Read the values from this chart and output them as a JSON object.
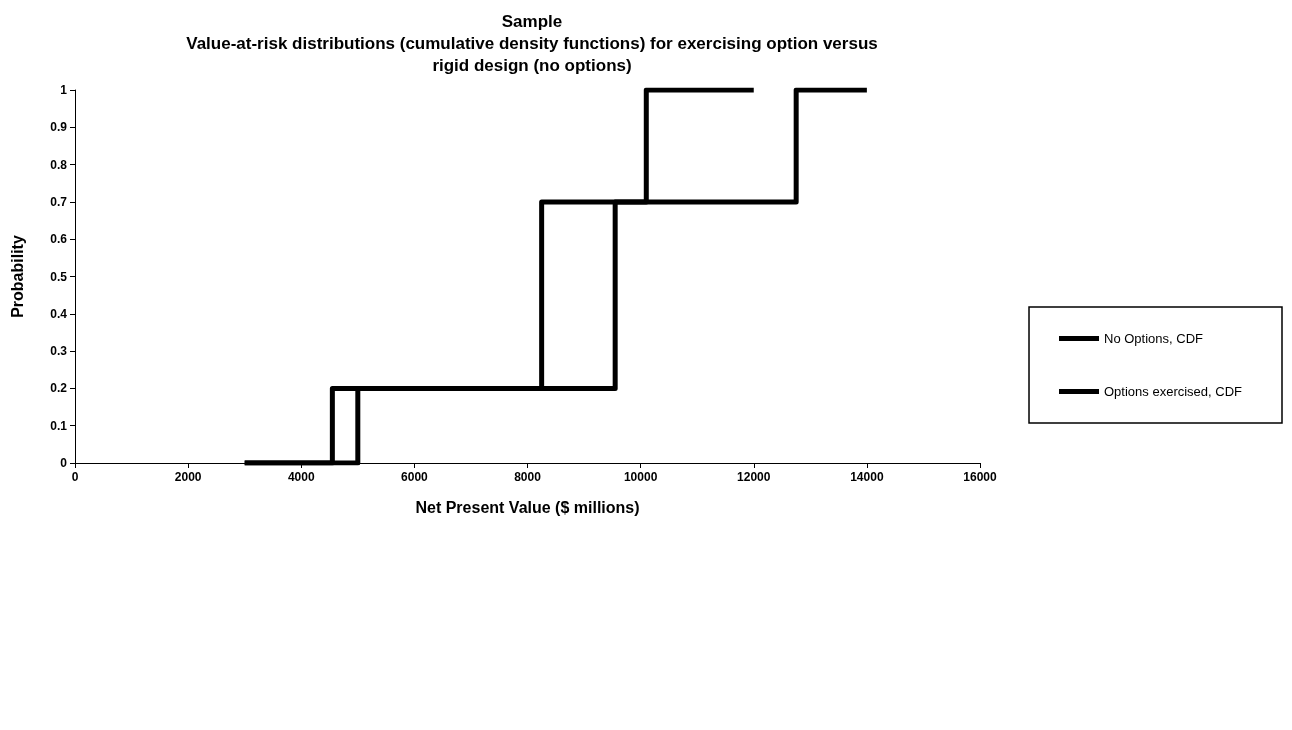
{
  "chart_data": {
    "type": "step",
    "title": "Sample\nValue-at-risk distributions (cumulative density functions) for exercising option versus\nrigid design (no options)",
    "xlabel": "Net Present Value ($ millions)",
    "ylabel": "Probability",
    "series": [
      {
        "name": "No Options, CDF",
        "color": "#000000",
        "x": [
          3000,
          4550,
          8250,
          10100,
          12000
        ],
        "values": [
          0,
          0.2,
          0.7,
          1,
          1
        ]
      },
      {
        "name": "Options exercised, CDF",
        "color": "#000000",
        "x": [
          3000,
          5000,
          9550,
          12750,
          14000
        ],
        "values": [
          0,
          0.2,
          0.7,
          1,
          1
        ]
      }
    ],
    "xlim": [
      0,
      16000
    ],
    "xticks": [
      0,
      2000,
      4000,
      6000,
      8000,
      10000,
      12000,
      14000,
      16000
    ],
    "ylim": [
      0,
      1
    ],
    "yticks": [
      0,
      0.1,
      0.2,
      0.3,
      0.4,
      0.5,
      0.6,
      0.7,
      0.8,
      0.9,
      1
    ],
    "grid": false,
    "legend": "right",
    "marker": "none"
  }
}
